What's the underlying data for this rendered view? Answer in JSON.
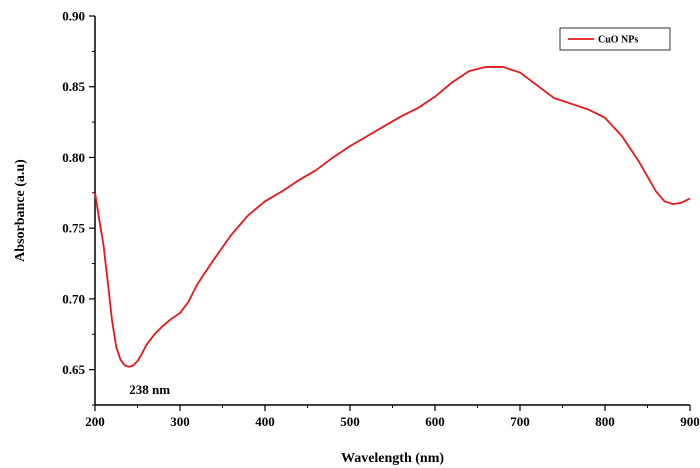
{
  "chart_data": {
    "type": "line",
    "xlabel": "Wavelength (nm)",
    "ylabel": "Absorbance (a.u)",
    "xlim": [
      200,
      900
    ],
    "ylim": [
      0.625,
      0.9
    ],
    "xticks": [
      200,
      300,
      400,
      500,
      600,
      700,
      800,
      900
    ],
    "yticks": [
      0.65,
      0.7,
      0.75,
      0.8,
      0.85,
      0.9
    ],
    "ytick_labels": [
      "0.65",
      "0.70",
      "0.75",
      "0.80",
      "0.85",
      "0.90"
    ],
    "legend": "top-right",
    "grid": false,
    "series": [
      {
        "name": "CuO NPs",
        "color": "#e8161b",
        "x": [
          200,
          205,
          210,
          215,
          220,
          225,
          230,
          235,
          240,
          245,
          250,
          255,
          260,
          270,
          280,
          290,
          300,
          310,
          320,
          340,
          360,
          380,
          400,
          420,
          440,
          460,
          480,
          500,
          520,
          540,
          560,
          580,
          600,
          620,
          640,
          660,
          680,
          700,
          720,
          740,
          760,
          780,
          800,
          820,
          840,
          860,
          870,
          880,
          890,
          900
        ],
        "y": [
          0.775,
          0.756,
          0.738,
          0.712,
          0.685,
          0.666,
          0.657,
          0.653,
          0.652,
          0.653,
          0.656,
          0.661,
          0.667,
          0.675,
          0.681,
          0.686,
          0.69,
          0.698,
          0.71,
          0.728,
          0.745,
          0.759,
          0.769,
          0.776,
          0.784,
          0.791,
          0.8,
          0.808,
          0.815,
          0.822,
          0.829,
          0.835,
          0.843,
          0.853,
          0.861,
          0.864,
          0.864,
          0.86,
          0.851,
          0.842,
          0.838,
          0.834,
          0.828,
          0.815,
          0.797,
          0.776,
          0.769,
          0.767,
          0.768,
          0.771
        ]
      }
    ],
    "annotations": [
      {
        "text": "238 nm",
        "x": 238,
        "y": 0.652
      }
    ]
  }
}
